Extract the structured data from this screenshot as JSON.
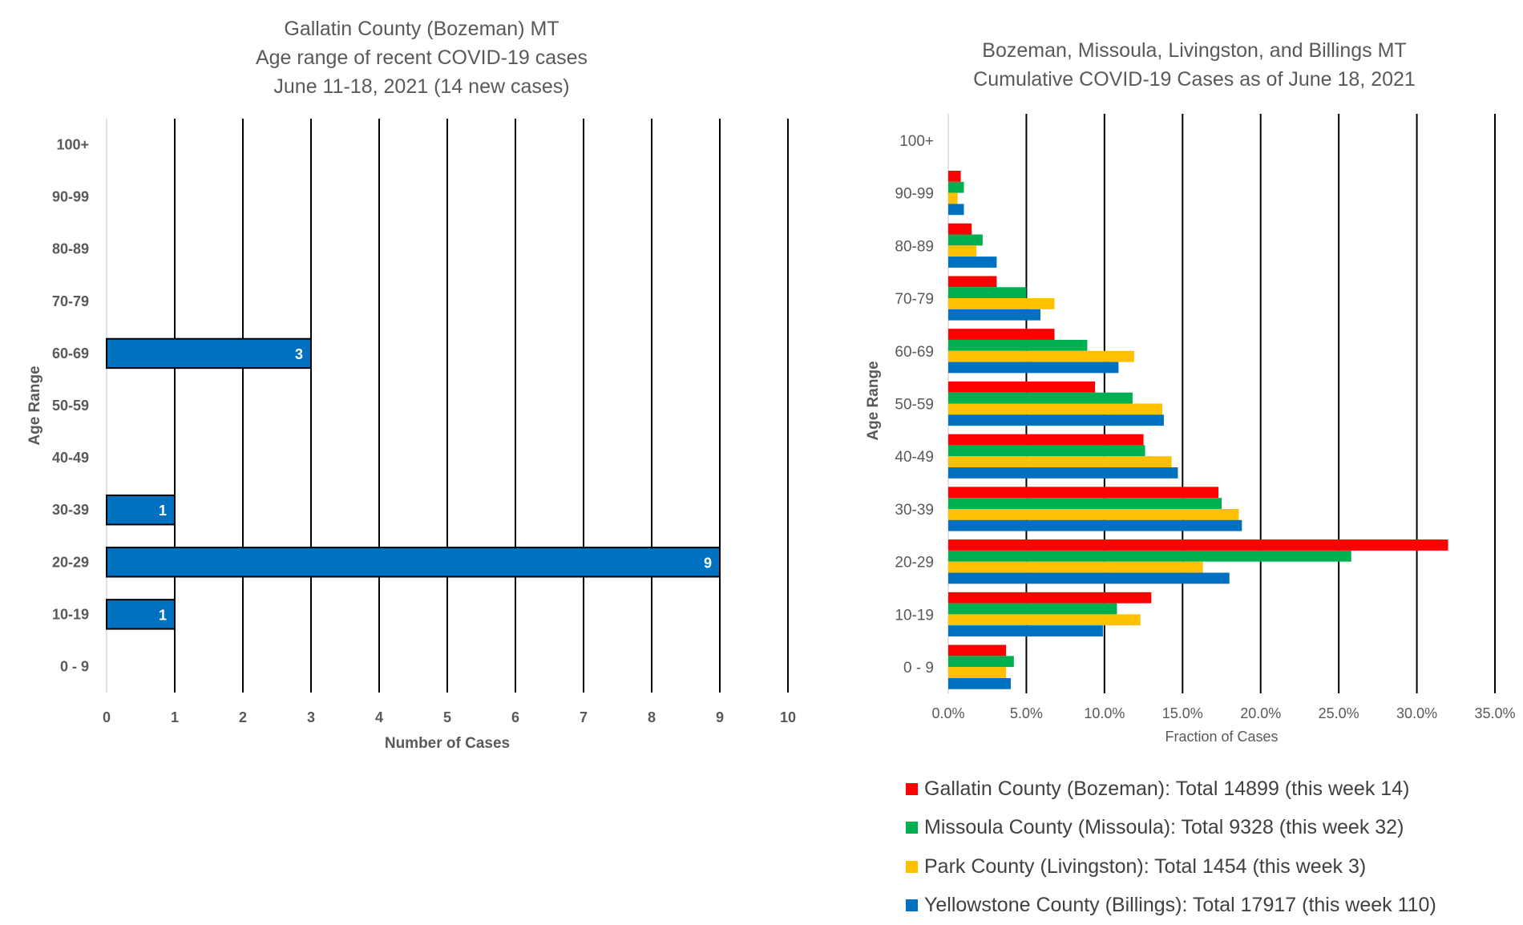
{
  "chart_data": [
    {
      "type": "bar",
      "orientation": "horizontal",
      "title_lines": [
        "Gallatin County (Bozeman) MT",
        "Age range of recent COVID-19 cases",
        "June 11-18, 2021 (14 new cases)"
      ],
      "xlabel": "Number of Cases",
      "ylabel": "Age Range",
      "categories": [
        "0 - 9",
        "10-19",
        "20-29",
        "30-39",
        "40-49",
        "50-59",
        "60-69",
        "70-79",
        "80-89",
        "90-99",
        "100+"
      ],
      "values": [
        0,
        1,
        9,
        1,
        0,
        0,
        3,
        0,
        0,
        0,
        0
      ],
      "xlim": [
        0,
        10
      ],
      "xticks": [
        "0",
        "1",
        "2",
        "3",
        "4",
        "5",
        "6",
        "7",
        "8",
        "9",
        "10"
      ],
      "grid": "vertical",
      "bar_color": "#0070C0",
      "data_labels": true
    },
    {
      "type": "bar",
      "orientation": "horizontal",
      "title_lines": [
        "Bozeman, Missoula, Livingston, and Billings MT",
        "Cumulative COVID-19 Cases as of June 18, 2021"
      ],
      "xlabel": "Fraction of Cases",
      "ylabel": "Age Range",
      "categories": [
        "0 - 9",
        "10-19",
        "20-29",
        "30-39",
        "40-49",
        "50-59",
        "60-69",
        "70-79",
        "80-89",
        "90-99",
        "100+"
      ],
      "xlim": [
        0,
        35
      ],
      "xticks": [
        "0.0%",
        "5.0%",
        "10.0%",
        "15.0%",
        "20.0%",
        "25.0%",
        "30.0%",
        "35.0%"
      ],
      "grid": "vertical",
      "legend_position": "bottom",
      "series": [
        {
          "name": "Gallatin County (Bozeman): Total 14899 (this week 14)",
          "color": "#FF0000",
          "values": [
            3.7,
            13.0,
            32.0,
            17.3,
            12.5,
            9.4,
            6.8,
            3.1,
            1.5,
            0.8,
            0.0
          ]
        },
        {
          "name": "Missoula County (Missoula): Total 9328 (this week 32)",
          "color": "#00B050",
          "values": [
            4.2,
            10.8,
            25.8,
            17.5,
            12.6,
            11.8,
            8.9,
            5.0,
            2.2,
            1.0,
            0.0
          ]
        },
        {
          "name": "Park County (Livingston): Total 1454 (this week 3)",
          "color": "#FFC000",
          "values": [
            3.7,
            12.3,
            16.3,
            18.6,
            14.3,
            13.7,
            11.9,
            6.8,
            1.8,
            0.6,
            0.0
          ]
        },
        {
          "name": "Yellowstone County (Billings): Total 17917 (this week 110)",
          "color": "#0070C0",
          "values": [
            4.0,
            9.9,
            18.0,
            18.8,
            14.7,
            13.8,
            10.9,
            5.9,
            3.1,
            1.0,
            0.0
          ]
        }
      ]
    }
  ]
}
